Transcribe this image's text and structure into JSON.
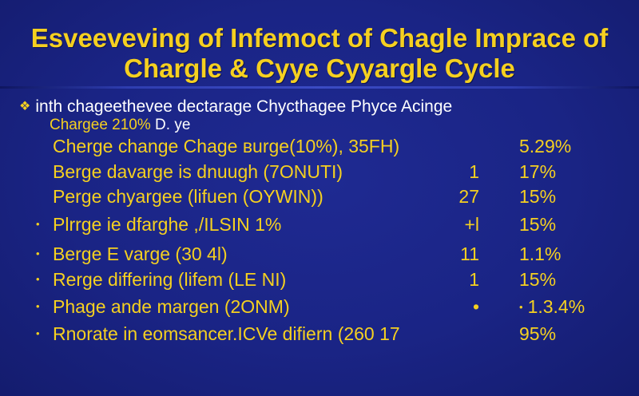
{
  "title": {
    "line1": "Esveeveving  of  Infemoct  of  Chagle  Imprace  of",
    "line2": "Chargle  &  Cyye  Cyyargle  Cycle"
  },
  "header": {
    "bullet": "❖",
    "text": "inth chageethevee dectarage Chycthagee Phyce Acinge"
  },
  "subheader": {
    "text": "Chargee 210%",
    "tail": "D. ye"
  },
  "rows": [
    {
      "bullet": "",
      "label": "Cherge change Chage вurge(10%), 35FH)",
      "num": "",
      "pct": "5.29%"
    },
    {
      "bullet": "",
      "label": "Berge davarge is dnuugh  (7ONUTI)",
      "num": "1",
      "pct": "17%"
    },
    {
      "bullet": "",
      "label": "Perge chyargee (lifuen (OYWIN))",
      "num": "27",
      "pct": "15%"
    },
    {
      "bullet": "•",
      "label": "Plrrge ie dfarghe  ,/ILSIN 1%",
      "num": "+l",
      "pct": "15%"
    },
    {
      "bullet": "•",
      "label": "Berge E varge (30 4l)",
      "num": "11",
      "pct": "1.1%"
    },
    {
      "bullet": "•",
      "label": "Rerge differing (lifem (LE NI)",
      "num": "1",
      "pct": "15%"
    },
    {
      "bullet": "•",
      "label": "Phage ande margen (2ONM)",
      "num": "•",
      "pct": "1.3.4%",
      "pct_bullet": "•"
    },
    {
      "bullet": "•",
      "label": "Rnorate in eomsancer.ICVe difiern  (260 17",
      "num": "",
      "pct": "95%"
    }
  ]
}
